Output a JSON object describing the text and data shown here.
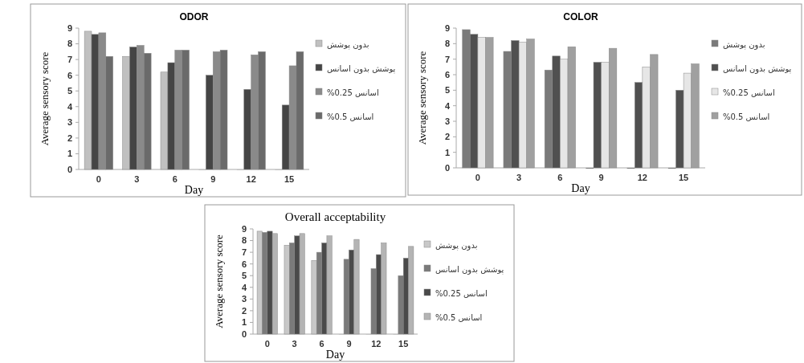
{
  "chart_data": [
    {
      "type": "bar",
      "title": "ODOR",
      "xlabel": "Day",
      "ylabel": "Average sensory score",
      "categories": [
        "0",
        "3",
        "6",
        "9",
        "12",
        "15"
      ],
      "ylim": [
        0,
        9
      ],
      "yticks": [
        0,
        1,
        2,
        3,
        4,
        5,
        6,
        7,
        8,
        9
      ],
      "legend": "right",
      "series": [
        {
          "name": "بدون پوشش",
          "color": "#c0c0c0",
          "values": [
            8.8,
            7.2,
            6.2,
            0,
            0,
            0
          ]
        },
        {
          "name": "پوشش بدون اسانس",
          "color": "#454545",
          "values": [
            8.6,
            7.8,
            6.8,
            6.0,
            5.1,
            4.1
          ]
        },
        {
          "name": "%0.25 اسانس",
          "color": "#8a8a8a",
          "values": [
            8.7,
            7.9,
            7.6,
            7.5,
            7.3,
            6.6
          ]
        },
        {
          "name": "%0.5 اسانس",
          "color": "#6a6a6a",
          "values": [
            7.2,
            7.4,
            7.6,
            7.6,
            7.5,
            7.5
          ]
        }
      ]
    },
    {
      "type": "bar",
      "title": "COLOR",
      "xlabel": "Day",
      "ylabel": "Average sensory score",
      "categories": [
        "0",
        "3",
        "6",
        "9",
        "12",
        "15"
      ],
      "ylim": [
        0,
        9
      ],
      "yticks": [
        0,
        1,
        2,
        3,
        4,
        5,
        6,
        7,
        8,
        9
      ],
      "legend": "right",
      "series": [
        {
          "name": "بدون پوشش",
          "color": "#7a7a7a",
          "values": [
            8.9,
            7.5,
            6.3,
            0,
            0,
            0
          ]
        },
        {
          "name": "پوشش بدون اسانس",
          "color": "#505050",
          "values": [
            8.6,
            8.2,
            7.2,
            6.8,
            5.5,
            5.0
          ]
        },
        {
          "name": "%0.25 اسانس",
          "color": "#e6e6e6",
          "values": [
            8.4,
            8.1,
            7.0,
            6.8,
            6.5,
            6.1
          ]
        },
        {
          "name": "%0.5 اسانس",
          "color": "#a0a0a0",
          "values": [
            8.4,
            8.3,
            7.8,
            7.7,
            7.3,
            6.7
          ]
        }
      ]
    },
    {
      "type": "bar",
      "title": "Overall acceptability",
      "xlabel": "Day",
      "ylabel": "Average sensory score",
      "categories": [
        "0",
        "3",
        "6",
        "9",
        "12",
        "15"
      ],
      "ylim": [
        0,
        9
      ],
      "yticks": [
        0,
        1,
        2,
        3,
        4,
        5,
        6,
        7,
        8,
        9
      ],
      "legend": "right",
      "series": [
        {
          "name": "بدون پوشش",
          "color": "#c8c8c8",
          "values": [
            8.8,
            7.6,
            6.3,
            0,
            0,
            0
          ]
        },
        {
          "name": "پوشش بدون اسانس",
          "color": "#7a7a7a",
          "values": [
            8.7,
            7.8,
            7.0,
            6.4,
            5.6,
            5.0
          ]
        },
        {
          "name": "%0.25 اسانس",
          "color": "#4a4a4a",
          "values": [
            8.8,
            8.4,
            7.8,
            7.2,
            6.8,
            6.5
          ]
        },
        {
          "name": "%0.5 اسانس",
          "color": "#b4b4b4",
          "values": [
            8.6,
            8.6,
            8.4,
            8.1,
            7.8,
            7.5
          ]
        }
      ]
    }
  ]
}
